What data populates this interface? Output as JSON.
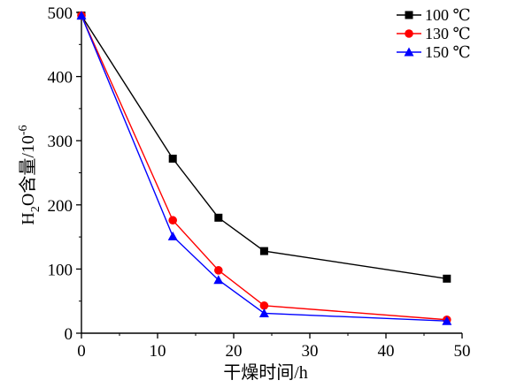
{
  "chart_data": {
    "type": "line",
    "title": "",
    "xlabel": "干燥时间/h",
    "ylabel_parts": {
      "base": "H",
      "sub": "2",
      "mid": "O含量/10",
      "sup": "-6"
    },
    "xlim": [
      0,
      50
    ],
    "ylim": [
      0,
      500
    ],
    "xticks": [
      0,
      10,
      20,
      30,
      40,
      50
    ],
    "yticks": [
      0,
      100,
      200,
      300,
      400,
      500
    ],
    "grid": false,
    "legend_position": "top-right",
    "series": [
      {
        "name": "100 ℃",
        "color": "#000000",
        "marker": "square",
        "points": [
          [
            0,
            495
          ],
          [
            12,
            272
          ],
          [
            18,
            180
          ],
          [
            24,
            128
          ],
          [
            48,
            85
          ]
        ]
      },
      {
        "name": "130 ℃",
        "color": "#ff0000",
        "marker": "circle",
        "points": [
          [
            0,
            495
          ],
          [
            12,
            176
          ],
          [
            18,
            98
          ],
          [
            24,
            43
          ],
          [
            48,
            21
          ]
        ]
      },
      {
        "name": "150 ℃",
        "color": "#0000ff",
        "marker": "triangle",
        "points": [
          [
            0,
            495
          ],
          [
            12,
            151
          ],
          [
            18,
            83
          ],
          [
            24,
            31
          ],
          [
            48,
            19
          ]
        ]
      }
    ]
  }
}
